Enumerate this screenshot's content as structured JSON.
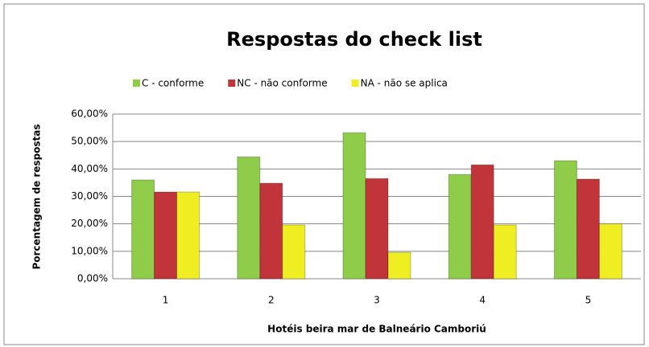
{
  "chart_data": {
    "type": "bar",
    "title": "Respostas do check list",
    "categories": [
      "1",
      "2",
      "3",
      "4",
      "5"
    ],
    "series": [
      {
        "name": "C - conforme",
        "color": "#8fcc4a",
        "values": [
          36.0,
          44.4,
          53.2,
          38.0,
          43.0
        ]
      },
      {
        "name": "NC - não conforme",
        "color": "#c0343a",
        "values": [
          31.6,
          34.8,
          36.5,
          41.5,
          36.3
        ]
      },
      {
        "name": "NA - não se aplica",
        "color": "#eeee22",
        "values": [
          31.6,
          19.6,
          9.6,
          19.6,
          20.0
        ]
      }
    ],
    "ylim": [
      0,
      60
    ],
    "yticks": [
      {
        "value": 0,
        "label": "0,00%"
      },
      {
        "value": 10,
        "label": "10,00%"
      },
      {
        "value": 20,
        "label": "20,00%"
      },
      {
        "value": 30,
        "label": "30,00%"
      },
      {
        "value": 40,
        "label": "40,00%"
      },
      {
        "value": 50,
        "label": "50,00%"
      },
      {
        "value": 60,
        "label": "60,00%"
      }
    ],
    "y_label": "Porcentagem de respostas",
    "x_label": "Hotéis beira mar de Balneário Camboriú",
    "grid": true
  }
}
